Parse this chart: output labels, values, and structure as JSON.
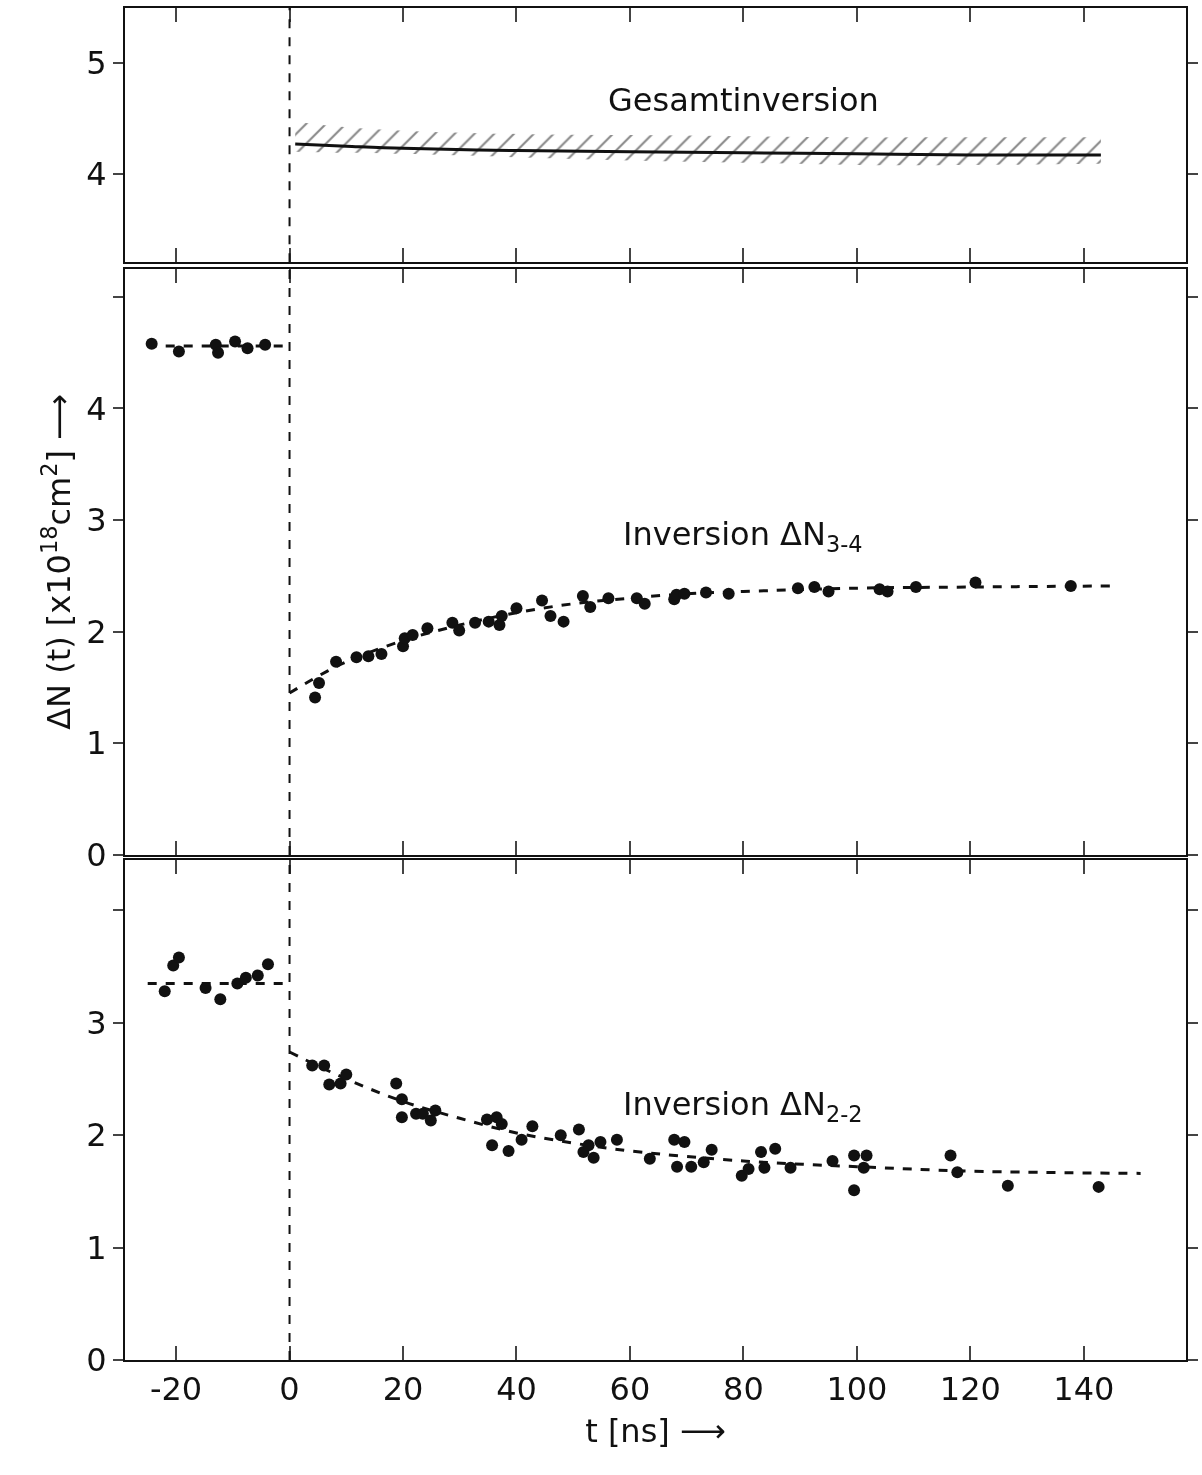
{
  "chart_data": [
    {
      "type": "line",
      "xlim": [
        -29,
        158
      ],
      "ylim": [
        3.2,
        5.5
      ],
      "yticks": [
        4,
        5
      ],
      "xticks": [
        {
          "value": -20,
          "label": null
        },
        {
          "value": 0,
          "label": null
        },
        {
          "value": 20,
          "label": null
        },
        {
          "value": 40,
          "label": null
        },
        {
          "value": 60,
          "label": null
        },
        {
          "value": 80,
          "label": null
        },
        {
          "value": 100,
          "label": null
        },
        {
          "value": 120,
          "label": null
        },
        {
          "value": 140,
          "label": null
        }
      ],
      "tick_labels": "y",
      "grid": false,
      "legend": false,
      "series": [
        {
          "name": "Gesamtinversion",
          "color": "#111111",
          "line_style": "solid",
          "marker": "none",
          "x": [
            1,
            10,
            20,
            40,
            60,
            80,
            100,
            120,
            143
          ],
          "values": [
            4.27,
            4.25,
            4.23,
            4.21,
            4.2,
            4.19,
            4.18,
            4.17,
            4.17
          ],
          "lower": [
            4.2,
            4.19,
            4.18,
            4.15,
            4.12,
            4.1,
            4.08,
            4.08,
            4.09
          ],
          "upper": [
            4.47,
            4.42,
            4.39,
            4.36,
            4.35,
            4.34,
            4.33,
            4.33,
            4.33
          ]
        }
      ],
      "ref_lines": [
        {
          "axis": "x",
          "value": 0,
          "line_style": "dashed",
          "color": "#111111"
        }
      ]
    },
    {
      "type": "scatter",
      "xlim": [
        -29,
        158
      ],
      "ylim": [
        0,
        5.25
      ],
      "yticks": [
        0,
        1,
        2,
        3,
        4,
        {
          "value": 5,
          "label": null
        }
      ],
      "xticks": [
        {
          "value": -20,
          "label": null
        },
        {
          "value": 0,
          "label": null
        },
        {
          "value": 20,
          "label": null
        },
        {
          "value": 40,
          "label": null
        },
        {
          "value": 60,
          "label": null
        },
        {
          "value": 80,
          "label": null
        },
        {
          "value": 100,
          "label": null
        },
        {
          "value": 120,
          "label": null
        },
        {
          "value": 140,
          "label": null
        }
      ],
      "tick_labels": "y",
      "grid": false,
      "legend": false,
      "ylabel": "ΔN (t) [x10$^{18}$cm$^{2}$] ⟶",
      "series": [
        {
          "type": "line",
          "color": "#111111",
          "line_style": "dashed",
          "marker": "none",
          "x": [
            -25,
            0
          ],
          "values": [
            4.56,
            4.56
          ]
        },
        {
          "color": "#111111",
          "marker": "circle",
          "x": [
            -24.3,
            -19.5,
            -13,
            -12.6,
            -9.6,
            -7.4,
            -4.3
          ],
          "values": [
            4.58,
            4.51,
            4.57,
            4.5,
            4.6,
            4.54,
            4.57
          ]
        },
        {
          "type": "line",
          "name": "Inversion ΔN$_{3-4}$",
          "color": "#111111",
          "line_style": "dashed",
          "marker": "none",
          "x": [
            0,
            5,
            10,
            20,
            30,
            40,
            50,
            60,
            70,
            80,
            100,
            120,
            145
          ],
          "values": [
            1.45,
            1.6,
            1.73,
            1.92,
            2.06,
            2.17,
            2.25,
            2.3,
            2.34,
            2.36,
            2.39,
            2.4,
            2.41
          ]
        },
        {
          "color": "#111111",
          "marker": "circle",
          "x": [
            4.5,
            5.2,
            8.2,
            11.8,
            13.9,
            16.2,
            20,
            20.3,
            21.7,
            24.3,
            28.7,
            29.9,
            32.7,
            35.1,
            37,
            37.4,
            40,
            44.5,
            46,
            48.3,
            51.7,
            53,
            56.2,
            61.2,
            62.6,
            67.8,
            68.2,
            69.6,
            73.4,
            77.4,
            89.6,
            92.5,
            95,
            104,
            105.4,
            110.4,
            120.9,
            137.7
          ],
          "values": [
            1.41,
            1.54,
            1.73,
            1.77,
            1.78,
            1.8,
            1.87,
            1.94,
            1.97,
            2.03,
            2.08,
            2.01,
            2.08,
            2.09,
            2.06,
            2.14,
            2.21,
            2.28,
            2.14,
            2.09,
            2.32,
            2.22,
            2.3,
            2.3,
            2.25,
            2.29,
            2.33,
            2.34,
            2.35,
            2.34,
            2.39,
            2.4,
            2.36,
            2.38,
            2.36,
            2.4,
            2.44,
            2.41
          ]
        }
      ],
      "ref_lines": [
        {
          "axis": "x",
          "value": 0,
          "line_style": "dashed",
          "color": "#111111"
        }
      ]
    },
    {
      "type": "scatter",
      "xlim": [
        -29,
        158
      ],
      "ylim": [
        0,
        4.45
      ],
      "yticks": [
        0,
        1,
        2,
        3,
        {
          "value": 4,
          "label": null
        }
      ],
      "xticks": [
        -20,
        0,
        20,
        40,
        60,
        80,
        100,
        120,
        140
      ],
      "grid": false,
      "legend": false,
      "xlabel": "t [ns] ⟶",
      "series": [
        {
          "type": "line",
          "color": "#111111",
          "line_style": "dashed",
          "marker": "none",
          "x": [
            -25,
            0
          ],
          "values": [
            3.35,
            3.35
          ]
        },
        {
          "color": "#111111",
          "marker": "circle",
          "x": [
            -22,
            -20.5,
            -19.5,
            -14.8,
            -12.2,
            -9.2,
            -7.7,
            -5.6,
            -3.8
          ],
          "values": [
            3.28,
            3.51,
            3.58,
            3.31,
            3.21,
            3.35,
            3.4,
            3.42,
            3.52
          ]
        },
        {
          "type": "line",
          "name": "Inversion ΔN$_{2-2}$",
          "color": "#111111",
          "line_style": "dashed",
          "marker": "none",
          "x": [
            0,
            10,
            20,
            30,
            40,
            50,
            60,
            80,
            100,
            120,
            150
          ],
          "values": [
            2.74,
            2.5,
            2.3,
            2.15,
            2.02,
            1.93,
            1.86,
            1.77,
            1.72,
            1.68,
            1.66
          ]
        },
        {
          "color": "#111111",
          "marker": "circle",
          "x": [
            4,
            6.1,
            7,
            9,
            10,
            18.8,
            19.8,
            19.8,
            22.3,
            23.5,
            24.9,
            25.7,
            34.8,
            35.7,
            36.5,
            37.4,
            38.6,
            40.9,
            42.8,
            47.8,
            51,
            51.8,
            52.7,
            53.6,
            54.8,
            57.7,
            63.5,
            67.8,
            68.3,
            69.6,
            70.8,
            73,
            74.4,
            79.7,
            80.9,
            83.1,
            83.7,
            85.6,
            88.3,
            95.7,
            99.5,
            99.5,
            101.7,
            101.2,
            116.5,
            117.7,
            126.6,
            142.6
          ],
          "values": [
            2.62,
            2.62,
            2.45,
            2.46,
            2.54,
            2.46,
            2.32,
            2.16,
            2.19,
            2.19,
            2.13,
            2.22,
            2.14,
            1.91,
            2.16,
            2.1,
            1.86,
            1.96,
            2.08,
            2.0,
            2.05,
            1.85,
            1.91,
            1.8,
            1.94,
            1.96,
            1.79,
            1.96,
            1.72,
            1.94,
            1.72,
            1.76,
            1.87,
            1.64,
            1.7,
            1.85,
            1.71,
            1.88,
            1.71,
            1.77,
            1.51,
            1.82,
            1.82,
            1.71,
            1.82,
            1.67,
            1.55,
            1.54
          ]
        }
      ],
      "ref_lines": [
        {
          "axis": "x",
          "value": 0,
          "line_style": "dashed",
          "color": "#111111"
        }
      ]
    }
  ]
}
